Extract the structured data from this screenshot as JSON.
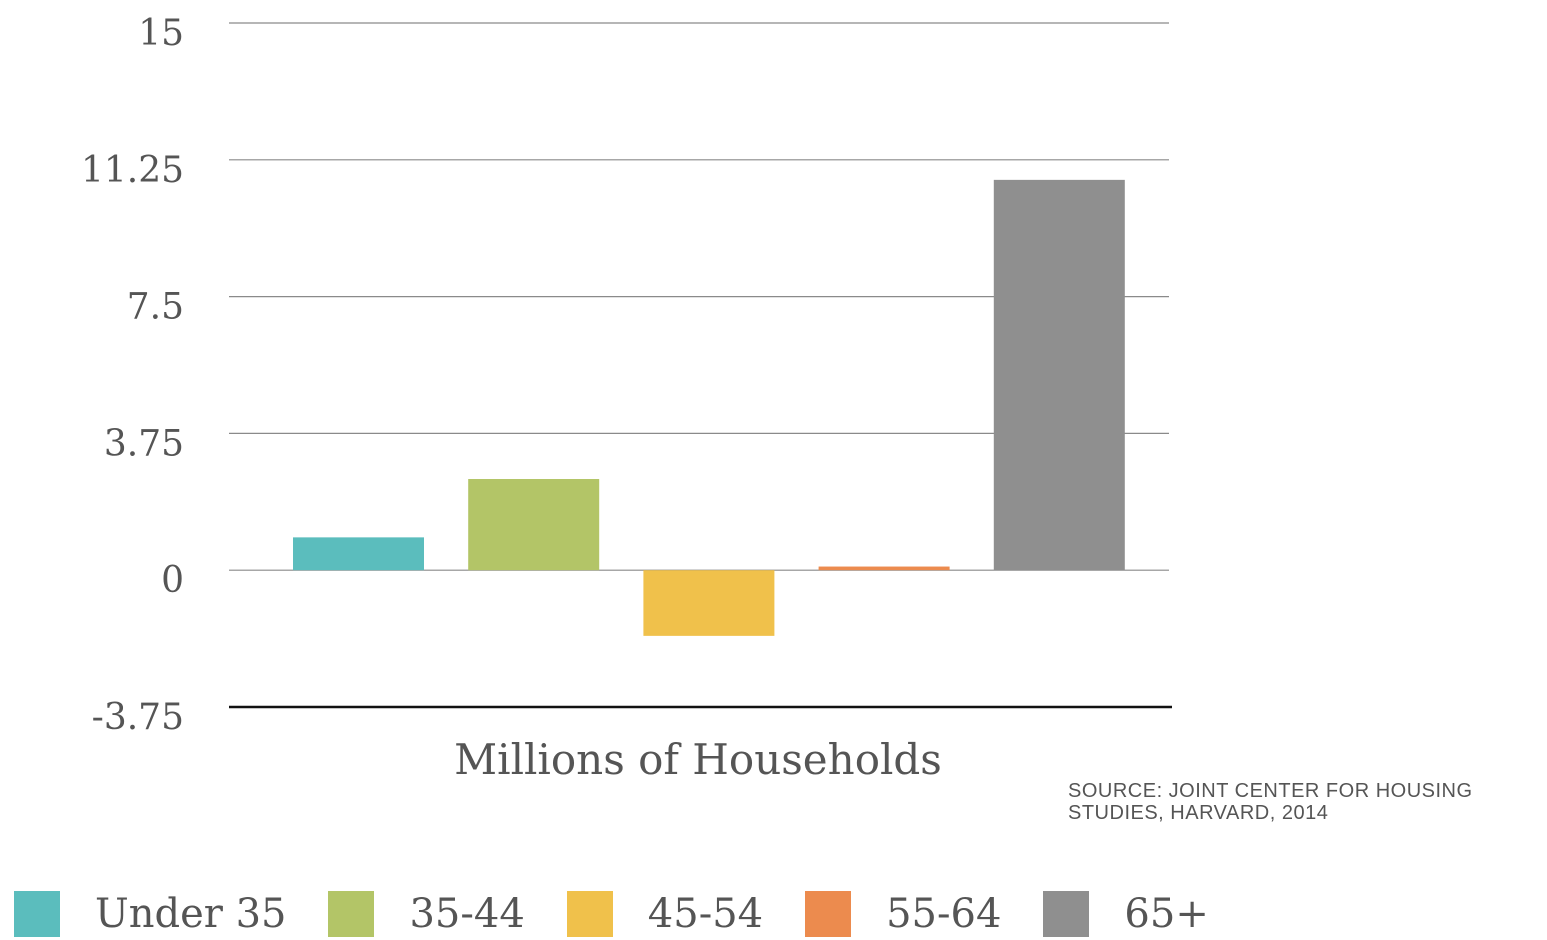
{
  "chart_data": {
    "type": "bar",
    "categories": [
      "Under 35",
      "35-44",
      "45-54",
      "55-64",
      "65+"
    ],
    "values": [
      0.9,
      2.5,
      -1.8,
      0.1,
      10.7
    ],
    "colors": [
      "#5bbdbd",
      "#b3c567",
      "#f0c14b",
      "#ec8b4e",
      "#8f8f8f"
    ],
    "title": "",
    "xlabel": "Millions of Households",
    "ylabel": "",
    "ylim": [
      -3.75,
      15
    ],
    "yticks": [
      "15",
      "11.25",
      "7.5",
      "3.75",
      "0",
      "-3.75"
    ],
    "ytick_values": [
      15,
      11.25,
      7.5,
      3.75,
      0,
      -3.75
    ],
    "grid": true,
    "legend_position": "bottom"
  },
  "source": "SOURCE: JOINT CENTER FOR HOUSING STUDIES, HARVARD, 2014"
}
